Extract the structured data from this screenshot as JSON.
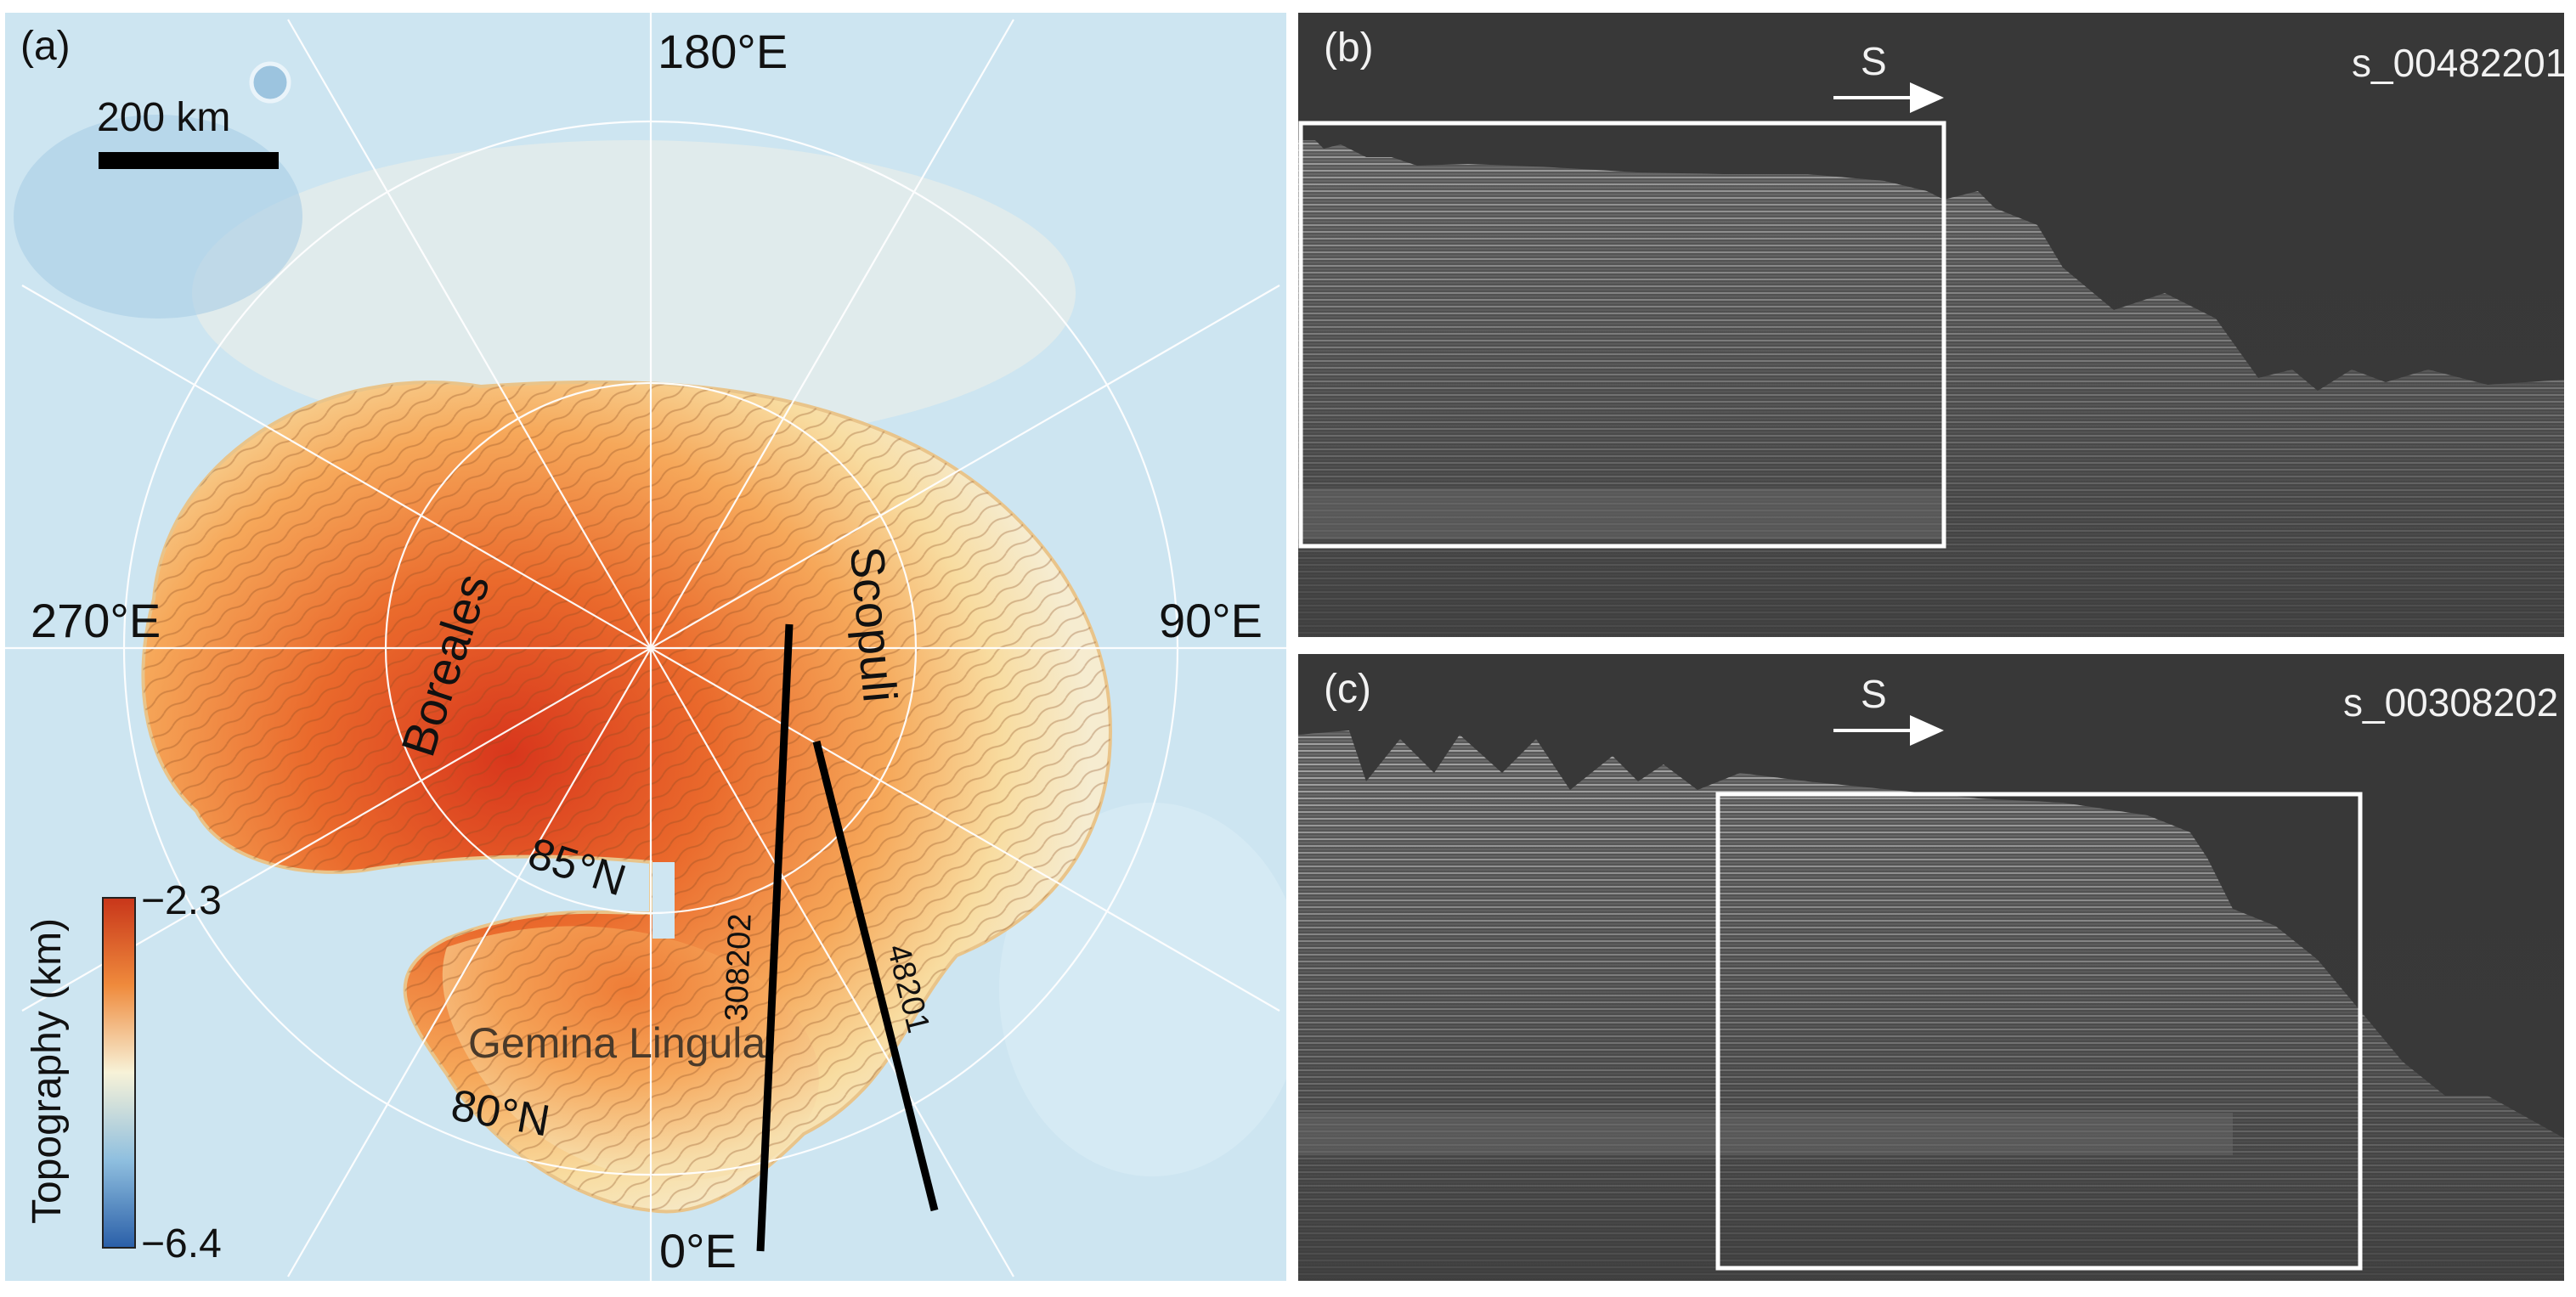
{
  "panel_a": {
    "label": "(a)",
    "scale_bar_text": "200 km",
    "lon_180": "180°E",
    "lon_270": "270°E",
    "lon_90": "90°E",
    "lon_0": "0°E",
    "lat_85": "85°N",
    "lat_80": "80°N",
    "region_borealis": "Boreales",
    "region_scopuli": "Scopuli",
    "region_gemina": "Gemina Lingula",
    "track_1": "308202",
    "track_2": "48201",
    "colorbar": {
      "title": "Topography (km)",
      "max_label": "−2.3",
      "min_label": "−6.4",
      "max_color": "#c8361a",
      "mid_color": "#f7f2d8",
      "min_color": "#2a5fa8"
    }
  },
  "panel_b": {
    "label": "(b)",
    "id": "s_00482201",
    "direction": "S"
  },
  "panel_c": {
    "label": "(c)",
    "id": "s_00308202",
    "direction": "S"
  }
}
